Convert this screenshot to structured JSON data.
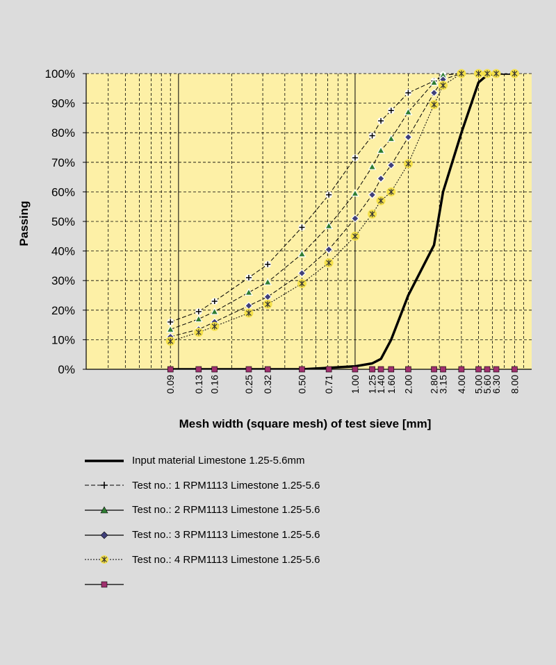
{
  "chart_data": {
    "type": "line",
    "x_scale": "log",
    "title": "",
    "xlabel": "Mesh width (square mesh) of test sieve [mm]",
    "ylabel": "Passing",
    "ylim": [
      0,
      100
    ],
    "xlim": [
      0.03,
      10
    ],
    "y_ticks": [
      "0%",
      "10%",
      "20%",
      "30%",
      "40%",
      "50%",
      "60%",
      "70%",
      "80%",
      "90%",
      "100%"
    ],
    "x_tick_labels": [
      "0.09",
      "0.13",
      "0.16",
      "0.25",
      "0.32",
      "0.50",
      "0.71",
      "1.00",
      "1.25",
      "1.40",
      "1.60",
      "2.00",
      "2.80",
      "3.15",
      "4.00",
      "5.00",
      "5.60",
      "6.30",
      "8.00"
    ],
    "grid": true,
    "legend_position": "below",
    "colors": {
      "plot_bg": "#fdf0a6",
      "page_bg": "#dcdcdc",
      "series1": "#000000",
      "marker_t2": "#2e7d32",
      "marker_t3": "#3f3f7a",
      "marker_t4": "#f5e14a",
      "marker_sieve": "#a0306e"
    },
    "series": [
      {
        "name": "Input material Limestone 1.25-5.6mm",
        "marker": "none",
        "x": [
          0.09,
          0.13,
          0.16,
          0.25,
          0.32,
          0.5,
          0.71,
          1.0,
          1.25,
          1.4,
          1.6,
          2.0,
          2.8,
          3.15,
          4.0,
          5.0,
          5.6,
          6.3,
          8.0
        ],
        "values": [
          0,
          0,
          0,
          0,
          0,
          0,
          0.5,
          1,
          2,
          3.5,
          10,
          25,
          42,
          60,
          80,
          97,
          99.5,
          100,
          100
        ]
      },
      {
        "name": "Test no.: 1 RPM1113 Limestone 1.25-5.6",
        "marker": "plus",
        "x": [
          0.09,
          0.13,
          0.16,
          0.25,
          0.32,
          0.5,
          0.71,
          1.0,
          1.25,
          1.4,
          1.6,
          2.0,
          2.8,
          3.15,
          4.0,
          5.0,
          5.6,
          6.3,
          8.0
        ],
        "values": [
          16,
          19.5,
          23,
          31,
          35.5,
          48,
          59,
          71.5,
          79,
          84,
          87.5,
          93.5,
          97.5,
          99.5,
          100,
          100,
          100,
          100,
          100
        ]
      },
      {
        "name": "Test no.: 2 RPM1113 Limestone 1.25-5.6",
        "marker": "triangle",
        "x": [
          0.09,
          0.13,
          0.16,
          0.25,
          0.32,
          0.5,
          0.71,
          1.0,
          1.25,
          1.4,
          1.6,
          2.0,
          2.8,
          3.15,
          4.0,
          5.0,
          5.6,
          6.3,
          8.0
        ],
        "values": [
          13.5,
          17,
          19.5,
          26,
          29.5,
          39,
          48.5,
          59.5,
          68.5,
          74,
          78,
          87,
          97,
          99.5,
          100,
          100,
          100,
          100,
          100
        ]
      },
      {
        "name": "Test no.: 3 RPM1113 Limestone 1.25-5.6",
        "marker": "diamond",
        "x": [
          0.09,
          0.13,
          0.16,
          0.25,
          0.32,
          0.5,
          0.71,
          1.0,
          1.25,
          1.4,
          1.6,
          2.0,
          2.8,
          3.15,
          4.0,
          5.0,
          5.6,
          6.3,
          8.0
        ],
        "values": [
          11,
          13.5,
          16,
          21.5,
          24.5,
          32.5,
          40.5,
          51,
          59,
          64.5,
          69,
          78.5,
          93.5,
          98,
          100,
          100,
          100,
          100,
          100
        ]
      },
      {
        "name": "Test no.: 4 RPM1113 Limestone 1.25-5.6",
        "marker": "star",
        "x": [
          0.09,
          0.13,
          0.16,
          0.25,
          0.32,
          0.5,
          0.71,
          1.0,
          1.25,
          1.4,
          1.6,
          2.0,
          2.8,
          3.15,
          4.0,
          5.0,
          5.6,
          6.3,
          8.0
        ],
        "values": [
          9.5,
          12.5,
          14.5,
          19,
          22,
          29,
          36,
          45,
          52.5,
          57,
          60,
          69.5,
          89.5,
          96,
          100,
          100,
          100,
          100,
          100
        ]
      },
      {
        "name": "",
        "marker": "square",
        "x": [
          0.09,
          0.13,
          0.16,
          0.25,
          0.32,
          0.5,
          0.71,
          1.0,
          1.25,
          1.4,
          1.6,
          2.0,
          2.8,
          3.15,
          4.0,
          5.0,
          5.6,
          6.3,
          8.0
        ],
        "values": [
          0,
          0,
          0,
          0,
          0,
          0,
          0,
          0,
          0,
          0,
          0,
          0,
          0,
          0,
          0,
          0,
          0,
          0,
          0
        ]
      }
    ]
  }
}
